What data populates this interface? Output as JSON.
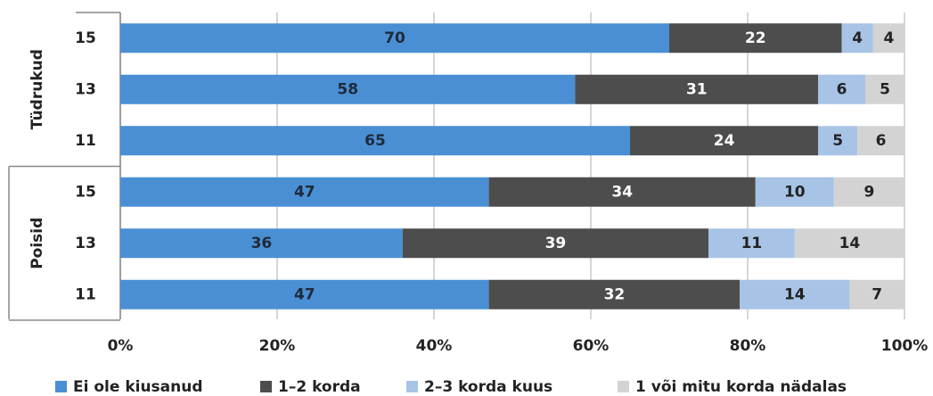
{
  "chart_data": {
    "type": "stacked_barh",
    "groups": [
      {
        "name": "Tüdrukud",
        "categories": [
          "15",
          "13",
          "11"
        ]
      },
      {
        "name": "Poisid",
        "categories": [
          "15",
          "13",
          "11"
        ]
      }
    ],
    "series": [
      {
        "name": "Ei ole kiusanud",
        "color": "#4a8fd4",
        "label_color": "#1e2a3a",
        "values": [
          70,
          58,
          65,
          47,
          36,
          47
        ]
      },
      {
        "name": "1–2 korda",
        "color": "#4d4d4d",
        "label_color": "#ffffff",
        "values": [
          22,
          31,
          24,
          34,
          39,
          32
        ]
      },
      {
        "name": "2–3 korda kuus",
        "color": "#a7c4e6",
        "label_color": "#222222",
        "values": [
          4,
          6,
          5,
          10,
          11,
          14
        ]
      },
      {
        "name": "1 või mitu korda nädalas",
        "color": "#d3d3d3",
        "label_color": "#222222",
        "values": [
          4,
          5,
          6,
          9,
          14,
          7
        ]
      }
    ],
    "xlim": [
      0,
      100
    ],
    "xticks": [
      {
        "value": 0,
        "label": "0%"
      },
      {
        "value": 20,
        "label": "20%"
      },
      {
        "value": 40,
        "label": "40%"
      },
      {
        "value": 60,
        "label": "60%"
      },
      {
        "value": 80,
        "label": "80%"
      },
      {
        "value": 100,
        "label": "100%"
      }
    ],
    "grid": true,
    "legend": "bottom"
  }
}
